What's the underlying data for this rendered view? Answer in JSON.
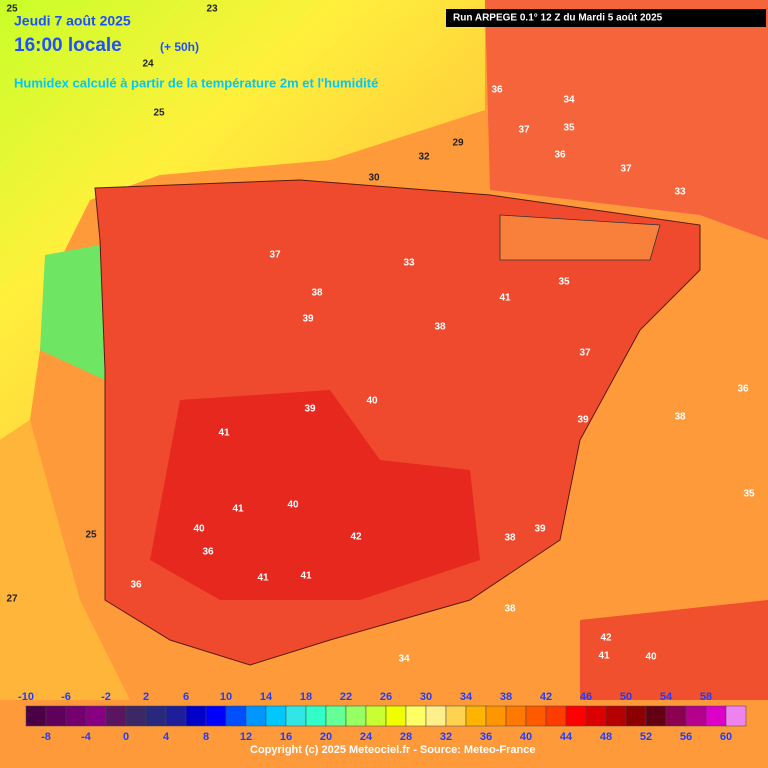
{
  "header": {
    "date": "Jeudi 7 août 2025",
    "time": "16:00 locale",
    "lead": "(+ 50h)",
    "subtitle": "Humidex calculé à partir de la température 2m et l'humidité",
    "run": "Run ARPEGE 0.1° 12 Z du Mardi 5 août 2025"
  },
  "legend": {
    "min": -10,
    "step": 2,
    "colors": [
      "#4b0046",
      "#5f005a",
      "#73006e",
      "#870082",
      "#5a1460",
      "#3c2864",
      "#28287d",
      "#1e1e9b",
      "#0000c8",
      "#0000ff",
      "#0050ff",
      "#0096ff",
      "#00c8ff",
      "#32e6e6",
      "#32ffc8",
      "#64ff96",
      "#96ff64",
      "#c8ff32",
      "#f0ff00",
      "#ffff64",
      "#fff08c",
      "#ffd250",
      "#ffb400",
      "#ff9600",
      "#ff7800",
      "#ff5a00",
      "#ff3c00",
      "#ff0000",
      "#dc0000",
      "#b40000",
      "#8c0000",
      "#640014",
      "#8c0050",
      "#b4008c",
      "#dc00c8",
      "#ee82ee"
    ],
    "top_labels": [
      -10,
      -6,
      -2,
      2,
      6,
      10,
      14,
      18,
      22,
      26,
      30,
      34,
      38,
      42,
      46,
      50,
      54,
      58
    ],
    "bottom_labels": [
      -8,
      -4,
      0,
      4,
      8,
      12,
      16,
      20,
      24,
      28,
      32,
      36,
      40,
      44,
      48,
      52,
      56,
      60
    ]
  },
  "map_labels": [
    23,
    25,
    24,
    25,
    32,
    30,
    29,
    36,
    37,
    34,
    35,
    33,
    38,
    37,
    38,
    39,
    40,
    41,
    41,
    40,
    39,
    41,
    40,
    39,
    38,
    36,
    35,
    37,
    41,
    42,
    41,
    39,
    38,
    37,
    36,
    35,
    34,
    38,
    36,
    27,
    25,
    42,
    41,
    40,
    33,
    36
  ],
  "footer": "Copyright (c) 2025 Meteociel.fr - Source: Meteo-France"
}
